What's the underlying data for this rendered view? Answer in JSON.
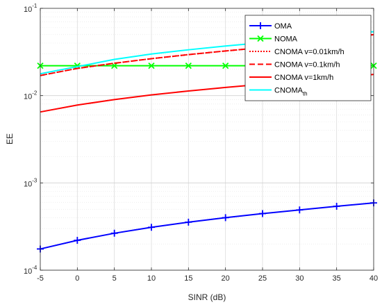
{
  "chart_data": {
    "type": "line",
    "title": "",
    "xlabel": "SINR (dB)",
    "ylabel": "EE",
    "xlim": [
      -5,
      40
    ],
    "ylim": [
      0.0001,
      0.1
    ],
    "yscale": "log",
    "grid": true,
    "minor_grid": true,
    "legend_position": "top-right",
    "x": [
      -5,
      0,
      5,
      10,
      15,
      20,
      25,
      30,
      35,
      40
    ],
    "x_ticks": [
      "-5",
      "0",
      "5",
      "10",
      "15",
      "20",
      "25",
      "30",
      "35",
      "40"
    ],
    "y_ticks": [
      {
        "base": "10",
        "exp": "-4"
      },
      {
        "base": "10",
        "exp": "-3"
      },
      {
        "base": "10",
        "exp": "-2"
      },
      {
        "base": "10",
        "exp": "-1"
      }
    ],
    "series": [
      {
        "name": "OMA",
        "color": "#0000ff",
        "line": "solid",
        "marker": "plus",
        "values": [
          0.000175,
          0.00022,
          0.000265,
          0.00031,
          0.000355,
          0.0004,
          0.000445,
          0.00049,
          0.00054,
          0.00059
        ]
      },
      {
        "name": "NOMA",
        "color": "#00ff00",
        "line": "solid",
        "marker": "x",
        "values": [
          0.022,
          0.022,
          0.022,
          0.022,
          0.022,
          0.022,
          0.022,
          0.022,
          0.022,
          0.022
        ]
      },
      {
        "name": "CNOMA v=0.01km/h",
        "color": "#ff0000",
        "line": "dotted",
        "marker": "none",
        "values": [
          0.017,
          0.0205,
          0.0235,
          0.0265,
          0.0295,
          0.0325,
          0.0355,
          0.0395,
          0.0445,
          0.05
        ]
      },
      {
        "name": "CNOMA v=0.1km/h",
        "color": "#ff0000",
        "line": "dashed",
        "marker": "none",
        "values": [
          0.017,
          0.0205,
          0.0235,
          0.0265,
          0.0295,
          0.0325,
          0.0355,
          0.0395,
          0.0445,
          0.05
        ]
      },
      {
        "name": "CNOMA v=1km/h",
        "color": "#ff0000",
        "line": "solid",
        "marker": "none",
        "values": [
          0.0065,
          0.0078,
          0.009,
          0.0102,
          0.0113,
          0.0124,
          0.0135,
          0.0146,
          0.0158,
          0.0175
        ]
      },
      {
        "name": "CNOMA",
        "name_subscript": "th",
        "color": "#00ffff",
        "line": "solid",
        "marker": "none",
        "values": [
          0.0178,
          0.0215,
          0.026,
          0.03,
          0.0335,
          0.037,
          0.0405,
          0.0445,
          0.0495,
          0.054
        ]
      }
    ]
  }
}
